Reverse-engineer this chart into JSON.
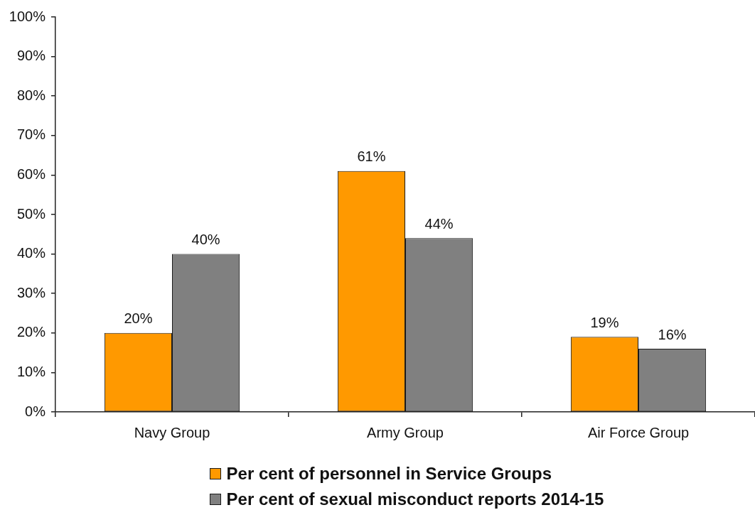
{
  "chart_data": {
    "type": "bar",
    "categories": [
      "Navy Group",
      "Army Group",
      "Air Force Group"
    ],
    "series": [
      {
        "name": "Per cent of personnel in Service Groups",
        "color": "#ff9900",
        "values": [
          20,
          61,
          19
        ],
        "value_labels": [
          "20%",
          "61%",
          "19%"
        ]
      },
      {
        "name": "Per cent of sexual misconduct reports 2014-15",
        "color": "#808080",
        "values": [
          40,
          44,
          16
        ],
        "value_labels": [
          "40%",
          "44%",
          "16%"
        ]
      }
    ],
    "ylim": [
      0,
      100
    ],
    "yticks": [
      {
        "value": 0,
        "label": "0%"
      },
      {
        "value": 10,
        "label": "10%"
      },
      {
        "value": 20,
        "label": "20%"
      },
      {
        "value": 30,
        "label": "30%"
      },
      {
        "value": 40,
        "label": "40%"
      },
      {
        "value": 50,
        "label": "50%"
      },
      {
        "value": 60,
        "label": "60%"
      },
      {
        "value": 70,
        "label": "70%"
      },
      {
        "value": 80,
        "label": "80%"
      },
      {
        "value": 90,
        "label": "90%"
      },
      {
        "value": 100,
        "label": "100%"
      }
    ],
    "grid": false,
    "legend": "bottom"
  }
}
